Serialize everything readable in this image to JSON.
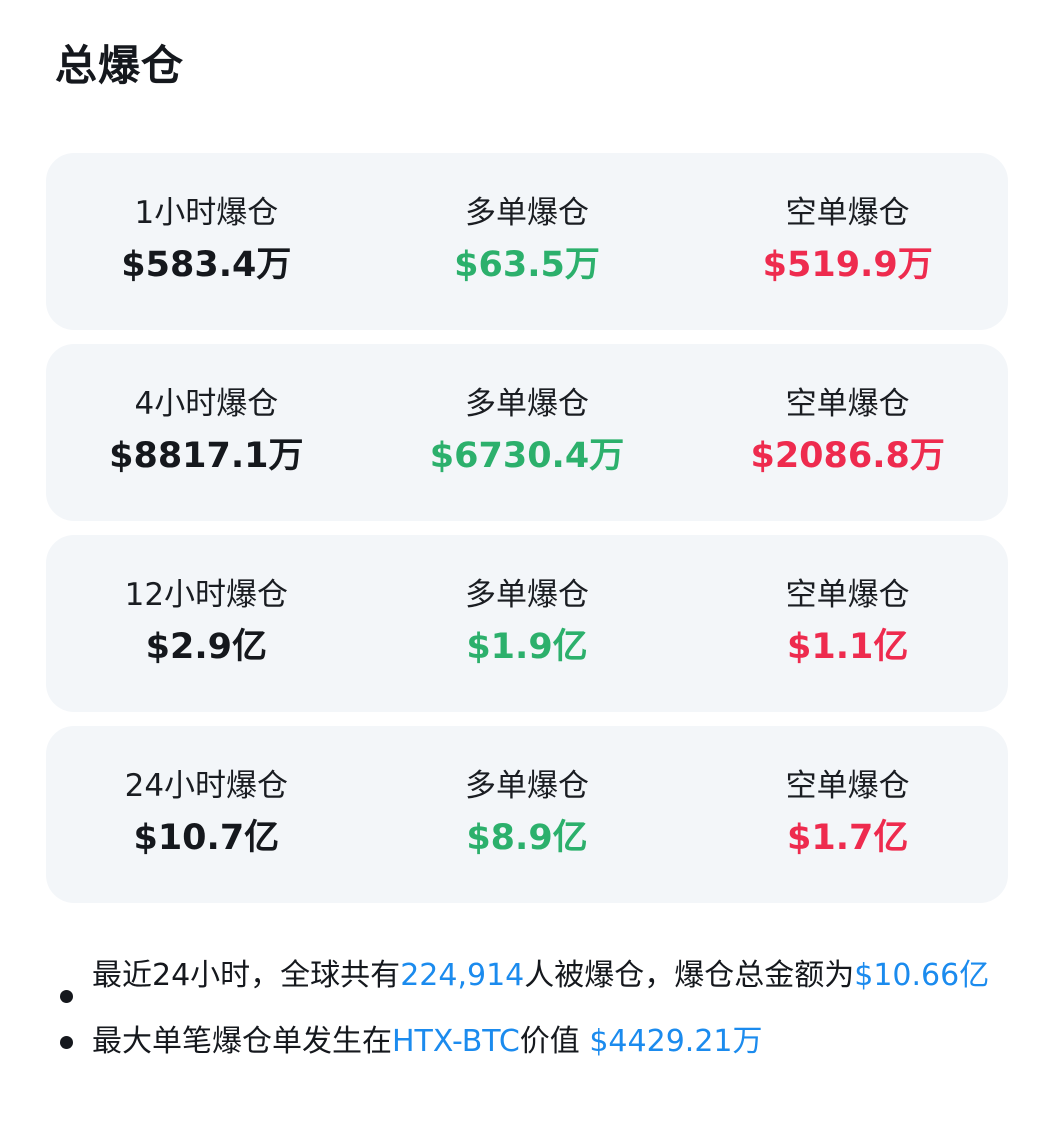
{
  "title": "总爆仓",
  "colors": {
    "total": "#15181d",
    "long": "#2cb06c",
    "short": "#ee2b4e",
    "highlight": "#1b8bee"
  },
  "rows": [
    {
      "label": "1小时爆仓",
      "total": "$583.4万",
      "long_label": "多单爆仓",
      "long": "$63.5万",
      "short_label": "空单爆仓",
      "short": "$519.9万"
    },
    {
      "label": "4小时爆仓",
      "total": "$8817.1万",
      "long_label": "多单爆仓",
      "long": "$6730.4万",
      "short_label": "空单爆仓",
      "short": "$2086.8万"
    },
    {
      "label": "12小时爆仓",
      "total": "$2.9亿",
      "long_label": "多单爆仓",
      "long": "$1.9亿",
      "short_label": "空单爆仓",
      "short": "$1.1亿"
    },
    {
      "label": "24小时爆仓",
      "total": "$10.7亿",
      "long_label": "多单爆仓",
      "long": "$8.9亿",
      "short_label": "空单爆仓",
      "short": "$1.7亿"
    }
  ],
  "notes": {
    "n1_a": "最近24小时，全球共有",
    "n1_people": "224,914",
    "n1_b": "人被爆仓，爆仓总金额为",
    "n1_amount": "$10.66亿",
    "n2_a": "最大单笔爆仓单发生在",
    "n2_pair": "HTX-BTC",
    "n2_b": "价值 ",
    "n2_amount": "$4429.21万"
  }
}
